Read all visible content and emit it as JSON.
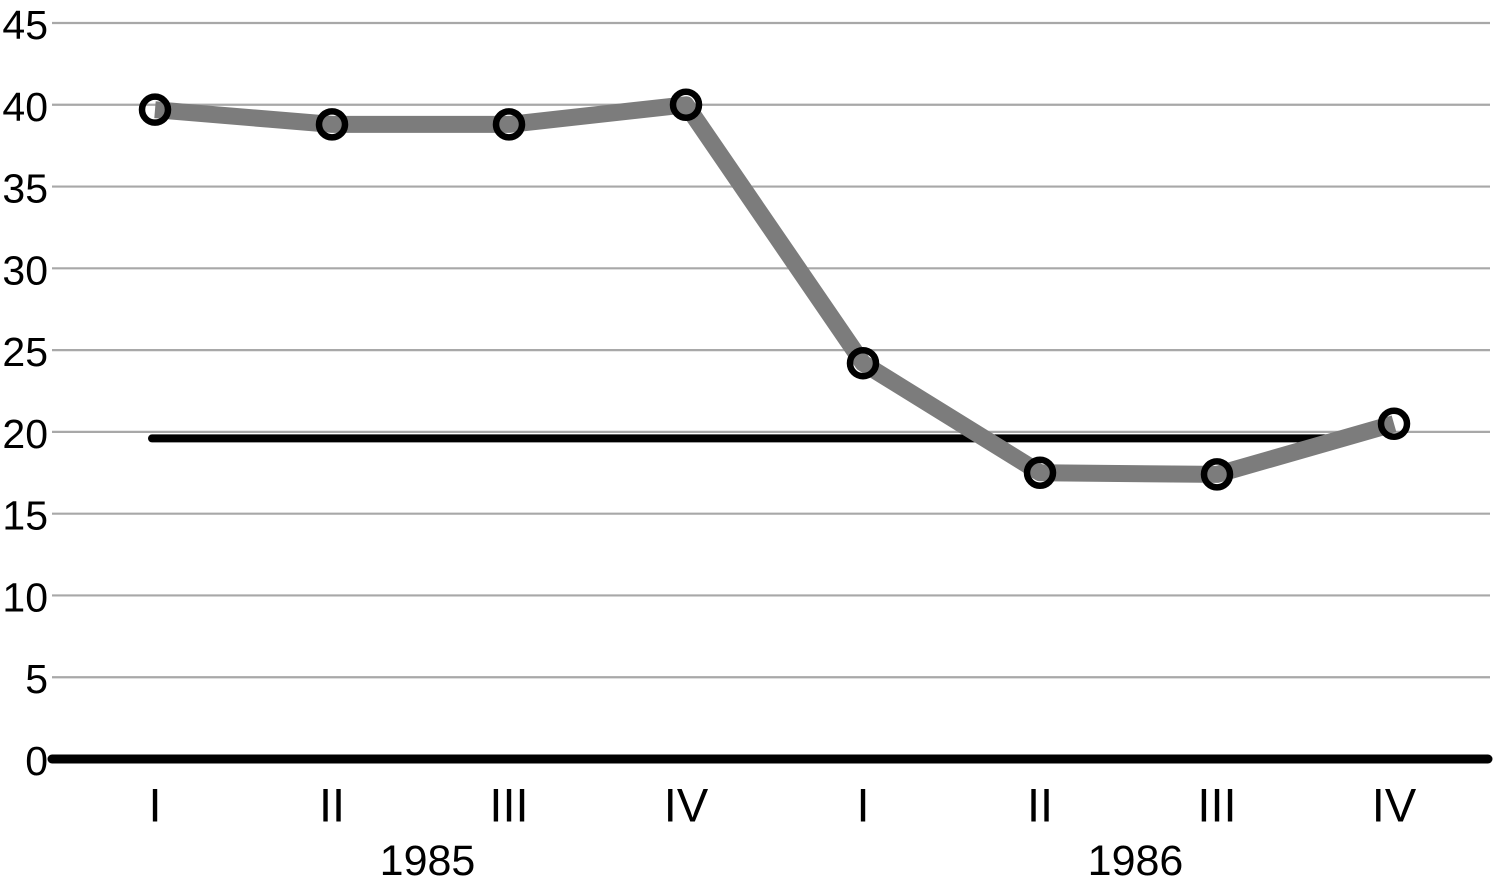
{
  "chart_data": {
    "type": "line",
    "x_labels": [
      "I",
      "II",
      "III",
      "IV",
      "I",
      "II",
      "III",
      "IV"
    ],
    "x_group_labels": [
      {
        "label": "1985",
        "start_index": 0,
        "end_index": 3
      },
      {
        "label": "1986",
        "start_index": 4,
        "end_index": 7
      }
    ],
    "series": [
      {
        "name": "quarterly-values",
        "values": [
          39.7,
          38.8,
          38.8,
          40.0,
          24.2,
          17.5,
          17.4,
          20.5
        ],
        "color": "#7c7c7c",
        "marker": "open-circle",
        "marker_stroke_color": "#000000"
      }
    ],
    "reference_line": {
      "value": 19.6,
      "color": "#000000",
      "start_index": 0,
      "end_index": 6.7
    },
    "yticks": [
      0,
      5,
      10,
      15,
      20,
      25,
      30,
      35,
      40,
      45
    ],
    "ylim": [
      0,
      45
    ],
    "grid": "horizontal",
    "gridline_color": "#a8a8a8",
    "baseline_color": "#000000",
    "legend": "none"
  }
}
